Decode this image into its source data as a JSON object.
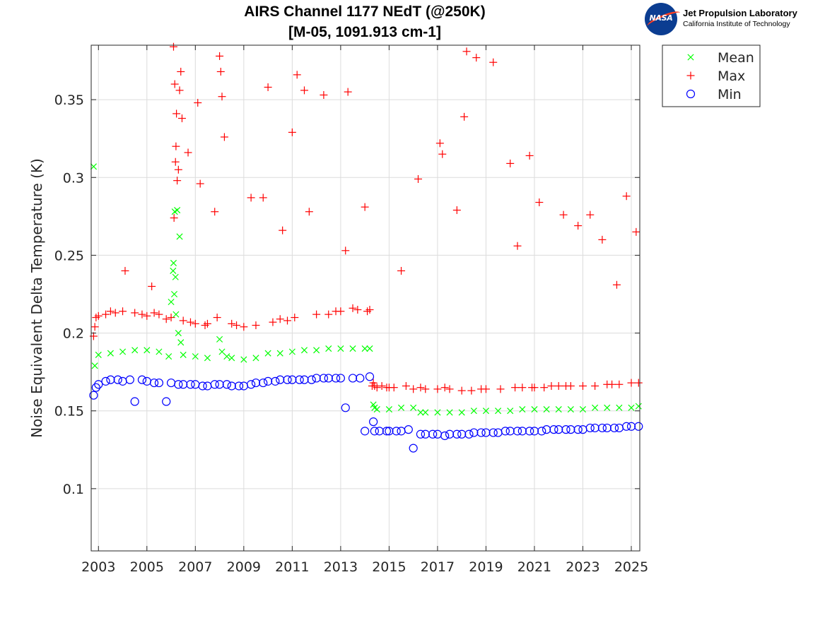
{
  "logo": {
    "badge_text": "NASA",
    "org_name": "Jet Propulsion Laboratory",
    "org_subtitle": "California Institute of Technology",
    "icon": "nasa-meatball-icon"
  },
  "chart_data": {
    "type": "scatter",
    "title": "AIRS Channel 1177 NEdT (@250K)",
    "subtitle": "[M-05, 1091.913 cm-1]",
    "xlabel": "",
    "ylabel": "Noise Equivalent Delta Temperature (K)",
    "xlim": [
      2002.7,
      2025.35
    ],
    "ylim": [
      0.06,
      0.385
    ],
    "xticks": [
      2003,
      2005,
      2007,
      2009,
      2011,
      2013,
      2015,
      2017,
      2019,
      2021,
      2023,
      2025
    ],
    "xtick_labels": [
      "2003",
      "2005",
      "2007",
      "2009",
      "2011",
      "2013",
      "2015",
      "2017",
      "2019",
      "2021",
      "2023",
      "2025"
    ],
    "yticks": [
      0.1,
      0.15,
      0.2,
      0.25,
      0.3,
      0.35
    ],
    "ytick_labels": [
      "0.1",
      "0.15",
      "0.2",
      "0.25",
      "0.3",
      "0.35"
    ],
    "grid": true,
    "legend_position": "outside-top-right",
    "legend": [
      {
        "label": "Mean",
        "marker": "x",
        "color": "#00ff00"
      },
      {
        "label": "Max",
        "marker": "+",
        "color": "#ff0000"
      },
      {
        "label": "Min",
        "marker": "o",
        "color": "#0000ff"
      }
    ],
    "series": [
      {
        "name": "Mean",
        "marker": "x",
        "color": "#00ff00",
        "x": [
          2002.8,
          2002.85,
          2003.0,
          2003.5,
          2004.0,
          2004.5,
          2005.0,
          2005.5,
          2005.9,
          2006.0,
          2006.08,
          2006.1,
          2006.13,
          2006.15,
          2006.18,
          2006.2,
          2006.25,
          2006.3,
          2006.35,
          2006.4,
          2006.5,
          2007.0,
          2007.5,
          2008.0,
          2008.1,
          2008.3,
          2008.5,
          2009.0,
          2009.5,
          2010.0,
          2010.5,
          2011.0,
          2011.5,
          2012.0,
          2012.5,
          2013.0,
          2013.5,
          2014.0,
          2014.2,
          2014.35,
          2014.4,
          2014.5,
          2015.0,
          2015.5,
          2016.0,
          2016.3,
          2016.5,
          2017.0,
          2017.5,
          2018.0,
          2018.5,
          2019.0,
          2019.5,
          2020.0,
          2020.5,
          2021.0,
          2021.5,
          2022.0,
          2022.5,
          2023.0,
          2023.5,
          2024.0,
          2024.5,
          2025.0,
          2025.3
        ],
        "y": [
          0.307,
          0.179,
          0.186,
          0.187,
          0.188,
          0.189,
          0.189,
          0.188,
          0.185,
          0.22,
          0.24,
          0.245,
          0.225,
          0.278,
          0.236,
          0.212,
          0.279,
          0.2,
          0.262,
          0.194,
          0.186,
          0.185,
          0.184,
          0.196,
          0.188,
          0.185,
          0.184,
          0.183,
          0.184,
          0.187,
          0.187,
          0.188,
          0.189,
          0.189,
          0.19,
          0.19,
          0.19,
          0.19,
          0.19,
          0.154,
          0.152,
          0.151,
          0.151,
          0.152,
          0.152,
          0.149,
          0.149,
          0.149,
          0.149,
          0.149,
          0.15,
          0.15,
          0.15,
          0.15,
          0.151,
          0.151,
          0.151,
          0.151,
          0.151,
          0.151,
          0.152,
          0.152,
          0.152,
          0.152,
          0.153
        ]
      },
      {
        "name": "Max",
        "marker": "+",
        "color": "#ff0000",
        "x": [
          2002.8,
          2002.85,
          2002.9,
          2003.0,
          2003.3,
          2003.5,
          2003.7,
          2004.0,
          2004.1,
          2004.5,
          2004.8,
          2005.0,
          2005.2,
          2005.3,
          2005.5,
          2005.8,
          2006.0,
          2006.1,
          2006.12,
          2006.15,
          2006.18,
          2006.2,
          2006.22,
          2006.25,
          2006.3,
          2006.35,
          2006.4,
          2006.45,
          2006.5,
          2006.7,
          2006.8,
          2007.0,
          2007.1,
          2007.2,
          2007.4,
          2007.5,
          2007.8,
          2007.9,
          2008.0,
          2008.05,
          2008.1,
          2008.2,
          2008.5,
          2008.7,
          2009.0,
          2009.3,
          2009.5,
          2009.8,
          2010.0,
          2010.2,
          2010.5,
          2010.6,
          2010.8,
          2011.0,
          2011.1,
          2011.2,
          2011.5,
          2011.7,
          2012.0,
          2012.3,
          2012.5,
          2012.8,
          2013.0,
          2013.2,
          2013.3,
          2013.5,
          2013.7,
          2014.0,
          2014.1,
          2014.2,
          2014.3,
          2014.35,
          2014.4,
          2014.5,
          2014.7,
          2014.9,
          2015.0,
          2015.2,
          2015.5,
          2015.7,
          2016.0,
          2016.2,
          2016.3,
          2016.5,
          2017.0,
          2017.1,
          2017.2,
          2017.3,
          2017.5,
          2017.8,
          2018.0,
          2018.1,
          2018.2,
          2018.4,
          2018.6,
          2018.8,
          2019.0,
          2019.3,
          2019.6,
          2020.0,
          2020.2,
          2020.3,
          2020.5,
          2020.8,
          2020.9,
          2021.0,
          2021.2,
          2021.4,
          2021.7,
          2022.0,
          2022.2,
          2022.3,
          2022.5,
          2022.8,
          2023.0,
          2023.3,
          2023.5,
          2023.8,
          2024.0,
          2024.2,
          2024.4,
          2024.5,
          2024.8,
          2025.0,
          2025.2,
          2025.3
        ],
        "y": [
          0.198,
          0.204,
          0.21,
          0.211,
          0.212,
          0.214,
          0.213,
          0.214,
          0.24,
          0.213,
          0.212,
          0.211,
          0.23,
          0.213,
          0.212,
          0.209,
          0.21,
          0.384,
          0.274,
          0.36,
          0.31,
          0.32,
          0.341,
          0.298,
          0.305,
          0.356,
          0.368,
          0.338,
          0.208,
          0.316,
          0.207,
          0.206,
          0.348,
          0.296,
          0.205,
          0.206,
          0.278,
          0.21,
          0.378,
          0.368,
          0.352,
          0.326,
          0.206,
          0.205,
          0.204,
          0.287,
          0.205,
          0.287,
          0.358,
          0.207,
          0.209,
          0.266,
          0.208,
          0.329,
          0.21,
          0.366,
          0.356,
          0.278,
          0.212,
          0.353,
          0.212,
          0.214,
          0.214,
          0.253,
          0.355,
          0.216,
          0.215,
          0.281,
          0.214,
          0.215,
          0.166,
          0.168,
          0.166,
          0.165,
          0.166,
          0.165,
          0.165,
          0.165,
          0.24,
          0.166,
          0.164,
          0.299,
          0.165,
          0.164,
          0.164,
          0.322,
          0.315,
          0.165,
          0.164,
          0.279,
          0.163,
          0.339,
          0.381,
          0.163,
          0.377,
          0.164,
          0.164,
          0.374,
          0.164,
          0.309,
          0.165,
          0.256,
          0.165,
          0.314,
          0.165,
          0.165,
          0.284,
          0.165,
          0.166,
          0.166,
          0.276,
          0.166,
          0.166,
          0.269,
          0.166,
          0.276,
          0.166,
          0.26,
          0.167,
          0.167,
          0.231,
          0.167,
          0.288,
          0.168,
          0.265,
          0.168
        ]
      },
      {
        "name": "Min",
        "marker": "o",
        "color": "#0000ff",
        "x": [
          2002.8,
          2002.9,
          2003.0,
          2003.3,
          2003.5,
          2003.8,
          2004.0,
          2004.3,
          2004.5,
          2004.8,
          2005.0,
          2005.3,
          2005.5,
          2005.8,
          2006.0,
          2006.3,
          2006.5,
          2006.8,
          2007.0,
          2007.3,
          2007.5,
          2007.8,
          2008.0,
          2008.3,
          2008.5,
          2008.8,
          2009.0,
          2009.3,
          2009.5,
          2009.8,
          2010.0,
          2010.3,
          2010.5,
          2010.8,
          2011.0,
          2011.3,
          2011.5,
          2011.8,
          2012.0,
          2012.3,
          2012.5,
          2012.8,
          2013.0,
          2013.2,
          2013.5,
          2013.8,
          2014.0,
          2014.2,
          2014.35,
          2014.4,
          2014.6,
          2014.9,
          2015.0,
          2015.3,
          2015.5,
          2015.8,
          2016.0,
          2016.3,
          2016.5,
          2016.8,
          2017.0,
          2017.3,
          2017.5,
          2017.8,
          2018.0,
          2018.3,
          2018.5,
          2018.8,
          2019.0,
          2019.3,
          2019.5,
          2019.8,
          2020.0,
          2020.3,
          2020.5,
          2020.8,
          2021.0,
          2021.3,
          2021.5,
          2021.8,
          2022.0,
          2022.3,
          2022.5,
          2022.8,
          2023.0,
          2023.3,
          2023.5,
          2023.8,
          2024.0,
          2024.3,
          2024.5,
          2024.8,
          2025.0,
          2025.3
        ],
        "y": [
          0.16,
          0.165,
          0.167,
          0.169,
          0.17,
          0.17,
          0.169,
          0.17,
          0.156,
          0.17,
          0.169,
          0.168,
          0.168,
          0.156,
          0.168,
          0.167,
          0.167,
          0.167,
          0.167,
          0.166,
          0.166,
          0.167,
          0.167,
          0.167,
          0.166,
          0.166,
          0.166,
          0.167,
          0.168,
          0.168,
          0.169,
          0.169,
          0.17,
          0.17,
          0.17,
          0.17,
          0.17,
          0.17,
          0.171,
          0.171,
          0.171,
          0.171,
          0.171,
          0.152,
          0.171,
          0.171,
          0.137,
          0.172,
          0.143,
          0.137,
          0.137,
          0.137,
          0.137,
          0.137,
          0.137,
          0.138,
          0.126,
          0.135,
          0.135,
          0.135,
          0.135,
          0.134,
          0.135,
          0.135,
          0.135,
          0.135,
          0.136,
          0.136,
          0.136,
          0.136,
          0.136,
          0.137,
          0.137,
          0.137,
          0.137,
          0.137,
          0.137,
          0.137,
          0.138,
          0.138,
          0.138,
          0.138,
          0.138,
          0.138,
          0.138,
          0.139,
          0.139,
          0.139,
          0.139,
          0.139,
          0.139,
          0.14,
          0.14,
          0.14
        ]
      }
    ]
  }
}
